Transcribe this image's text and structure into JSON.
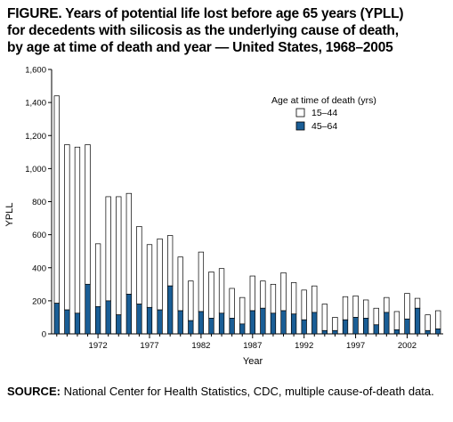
{
  "figure": {
    "title_lines": [
      "FIGURE. Years of potential life lost before age 65 years (YPLL)",
      "for decedents with silicosis as the underlying cause of death,",
      "by age at time of death and year — United States, 1968–2005"
    ],
    "source_label": "SOURCE:",
    "source_text": " National Center for Health Statistics, CDC, multiple cause-of-death data."
  },
  "chart_data": {
    "type": "bar",
    "stacked": true,
    "xlabel": "Year",
    "ylabel": "YPLL",
    "ylim": [
      0,
      1600
    ],
    "yticks": [
      0,
      200,
      400,
      600,
      800,
      1000,
      1200,
      1400,
      1600
    ],
    "ytick_labels": [
      "0",
      "200",
      "400",
      "600",
      "800",
      "1,000",
      "1,200",
      "1,400",
      "1,600"
    ],
    "xtick_labels": [
      "1972",
      "1977",
      "1982",
      "1987",
      "1992",
      "1997",
      "2002"
    ],
    "grid": false,
    "legend_position": "top-right",
    "legend_title": "Age at time of death (yrs)",
    "categories": [
      1968,
      1969,
      1970,
      1971,
      1972,
      1973,
      1974,
      1975,
      1976,
      1977,
      1978,
      1979,
      1980,
      1981,
      1982,
      1983,
      1984,
      1985,
      1986,
      1987,
      1988,
      1989,
      1990,
      1991,
      1992,
      1993,
      1994,
      1995,
      1996,
      1997,
      1998,
      1999,
      2000,
      2001,
      2002,
      2003,
      2004,
      2005
    ],
    "series": [
      {
        "name": "15–44",
        "color": "#ffffff",
        "values": [
          1255,
          1000,
          1005,
          845,
          380,
          630,
          715,
          610,
          470,
          380,
          430,
          305,
          325,
          240,
          360,
          280,
          270,
          180,
          160,
          210,
          165,
          175,
          230,
          190,
          180,
          160,
          160,
          80,
          140,
          130,
          110,
          100,
          90,
          110,
          155,
          60,
          95,
          110
        ]
      },
      {
        "name": "45–64",
        "color": "#1a5e96",
        "values": [
          185,
          145,
          125,
          300,
          165,
          200,
          115,
          240,
          180,
          160,
          145,
          290,
          140,
          80,
          135,
          95,
          125,
          95,
          60,
          140,
          155,
          125,
          140,
          120,
          85,
          130,
          20,
          20,
          85,
          100,
          95,
          55,
          130,
          25,
          90,
          155,
          20,
          30
        ]
      }
    ]
  }
}
